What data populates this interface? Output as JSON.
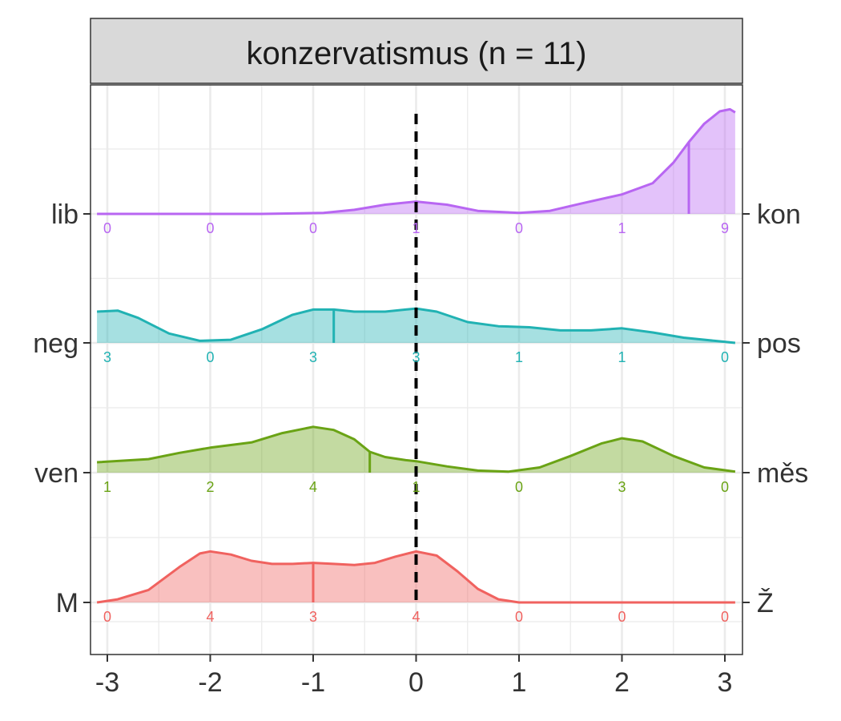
{
  "chart_data": {
    "type": "ridgeline-density",
    "facet_title": "konzervatismus (n = 11)",
    "xlim": [
      -3.1,
      3.1
    ],
    "x_ticks": [
      -3,
      -2,
      -1,
      0,
      1,
      2,
      3
    ],
    "x_tick_labels": [
      "-3",
      "-2",
      "-1",
      "0",
      "1",
      "2",
      "3"
    ],
    "reference_line": {
      "x": 0,
      "style": "dashed"
    },
    "grid": true,
    "rows": [
      {
        "left_label": "M",
        "right_label": "Ž",
        "color": "#f0625f",
        "counts": [
          0,
          4,
          3,
          4,
          0,
          0,
          0
        ],
        "median": -1,
        "density": [
          [
            -3.1,
            0
          ],
          [
            -2.9,
            0.03
          ],
          [
            -2.6,
            0.12
          ],
          [
            -2.3,
            0.34
          ],
          [
            -2.1,
            0.47
          ],
          [
            -2.0,
            0.49
          ],
          [
            -1.8,
            0.46
          ],
          [
            -1.6,
            0.4
          ],
          [
            -1.4,
            0.37
          ],
          [
            -1.2,
            0.37
          ],
          [
            -1.0,
            0.38
          ],
          [
            -0.8,
            0.37
          ],
          [
            -0.6,
            0.36
          ],
          [
            -0.4,
            0.38
          ],
          [
            -0.2,
            0.44
          ],
          [
            0,
            0.49
          ],
          [
            0.2,
            0.45
          ],
          [
            0.4,
            0.3
          ],
          [
            0.6,
            0.13
          ],
          [
            0.8,
            0.03
          ],
          [
            1.0,
            0
          ],
          [
            3.1,
            0
          ]
        ]
      },
      {
        "left_label": "ven",
        "right_label": "měs",
        "color": "#6aa315",
        "counts": [
          1,
          2,
          4,
          1,
          0,
          3,
          0
        ],
        "median": -0.45,
        "density": [
          [
            -3.1,
            0.1
          ],
          [
            -2.6,
            0.13
          ],
          [
            -2.3,
            0.19
          ],
          [
            -2.0,
            0.24
          ],
          [
            -1.6,
            0.29
          ],
          [
            -1.3,
            0.38
          ],
          [
            -1.0,
            0.44
          ],
          [
            -0.8,
            0.41
          ],
          [
            -0.6,
            0.32
          ],
          [
            -0.45,
            0.2
          ],
          [
            -0.3,
            0.15
          ],
          [
            -0.1,
            0.12
          ],
          [
            0,
            0.11
          ],
          [
            0.3,
            0.06
          ],
          [
            0.6,
            0.02
          ],
          [
            0.9,
            0.01
          ],
          [
            1.2,
            0.05
          ],
          [
            1.5,
            0.16
          ],
          [
            1.8,
            0.28
          ],
          [
            2.0,
            0.33
          ],
          [
            2.2,
            0.3
          ],
          [
            2.5,
            0.16
          ],
          [
            2.8,
            0.05
          ],
          [
            3.1,
            0.01
          ]
        ]
      },
      {
        "left_label": "neg",
        "right_label": "pos",
        "color": "#21b2b3",
        "counts": [
          3,
          0,
          3,
          3,
          1,
          1,
          0
        ],
        "median": -0.8,
        "density": [
          [
            -3.1,
            0.3
          ],
          [
            -2.9,
            0.31
          ],
          [
            -2.7,
            0.24
          ],
          [
            -2.4,
            0.09
          ],
          [
            -2.1,
            0.02
          ],
          [
            -1.8,
            0.03
          ],
          [
            -1.5,
            0.13
          ],
          [
            -1.2,
            0.27
          ],
          [
            -1.0,
            0.32
          ],
          [
            -0.8,
            0.32
          ],
          [
            -0.6,
            0.3
          ],
          [
            -0.3,
            0.3
          ],
          [
            0,
            0.33
          ],
          [
            0.2,
            0.3
          ],
          [
            0.5,
            0.2
          ],
          [
            0.8,
            0.16
          ],
          [
            1.1,
            0.15
          ],
          [
            1.4,
            0.12
          ],
          [
            1.7,
            0.12
          ],
          [
            2.0,
            0.14
          ],
          [
            2.3,
            0.1
          ],
          [
            2.6,
            0.05
          ],
          [
            2.9,
            0.02
          ],
          [
            3.1,
            0
          ]
        ]
      },
      {
        "left_label": "lib",
        "right_label": "kon",
        "color": "#b866f2",
        "counts": [
          0,
          0,
          0,
          1,
          0,
          1,
          9
        ],
        "median": 2.65,
        "density": [
          [
            -3.1,
            0
          ],
          [
            -1.5,
            0
          ],
          [
            -0.9,
            0.01
          ],
          [
            -0.6,
            0.04
          ],
          [
            -0.3,
            0.09
          ],
          [
            0,
            0.12
          ],
          [
            0.3,
            0.09
          ],
          [
            0.6,
            0.03
          ],
          [
            1.0,
            0.01
          ],
          [
            1.3,
            0.03
          ],
          [
            1.6,
            0.1
          ],
          [
            2.0,
            0.19
          ],
          [
            2.3,
            0.3
          ],
          [
            2.5,
            0.5
          ],
          [
            2.65,
            0.7
          ],
          [
            2.8,
            0.88
          ],
          [
            2.95,
            1.0
          ],
          [
            3.05,
            1.02
          ],
          [
            3.1,
            0.99
          ]
        ]
      }
    ]
  }
}
